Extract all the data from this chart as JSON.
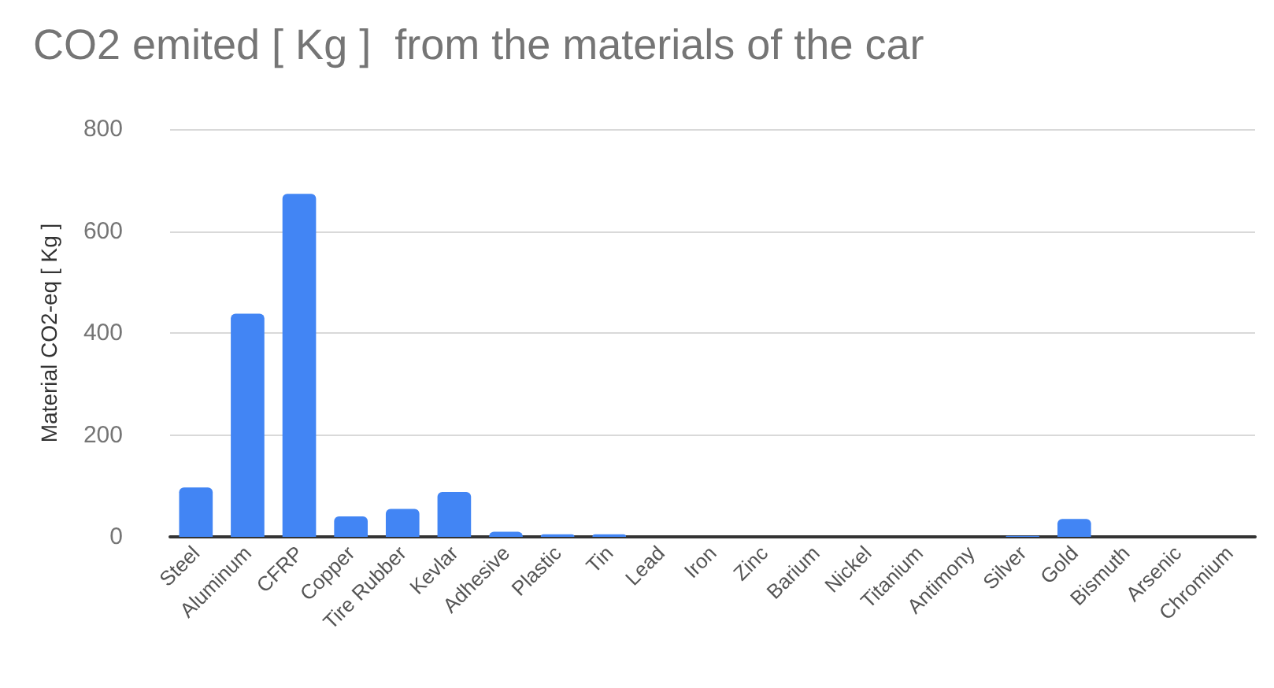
{
  "chart_data": {
    "type": "bar",
    "title": "CO2 emited [ Kg ]  from the materials of the car",
    "ylabel": "Material CO2-eq [ Kg ]",
    "categories": [
      "Steel",
      "Aluminum",
      "CFRP",
      "Copper",
      "Tire Rubber",
      "Kevlar",
      "Adhesive",
      "Plastic",
      "Tin",
      "Lead",
      "Iron",
      "Zinc",
      "Barium",
      "Nickel",
      "Titanium",
      "Antimony",
      "Silver",
      "Gold",
      "Bismuth",
      "Arsenic",
      "Chromium"
    ],
    "values": [
      97,
      438,
      673,
      40,
      55,
      88,
      10,
      5,
      5,
      0,
      0,
      0,
      0,
      0,
      0,
      0,
      2,
      35,
      0,
      0,
      0
    ],
    "color": "#4285f4",
    "ylim": [
      0,
      800
    ],
    "yticks": [
      0,
      200,
      400,
      600,
      800
    ],
    "grid": "y"
  }
}
